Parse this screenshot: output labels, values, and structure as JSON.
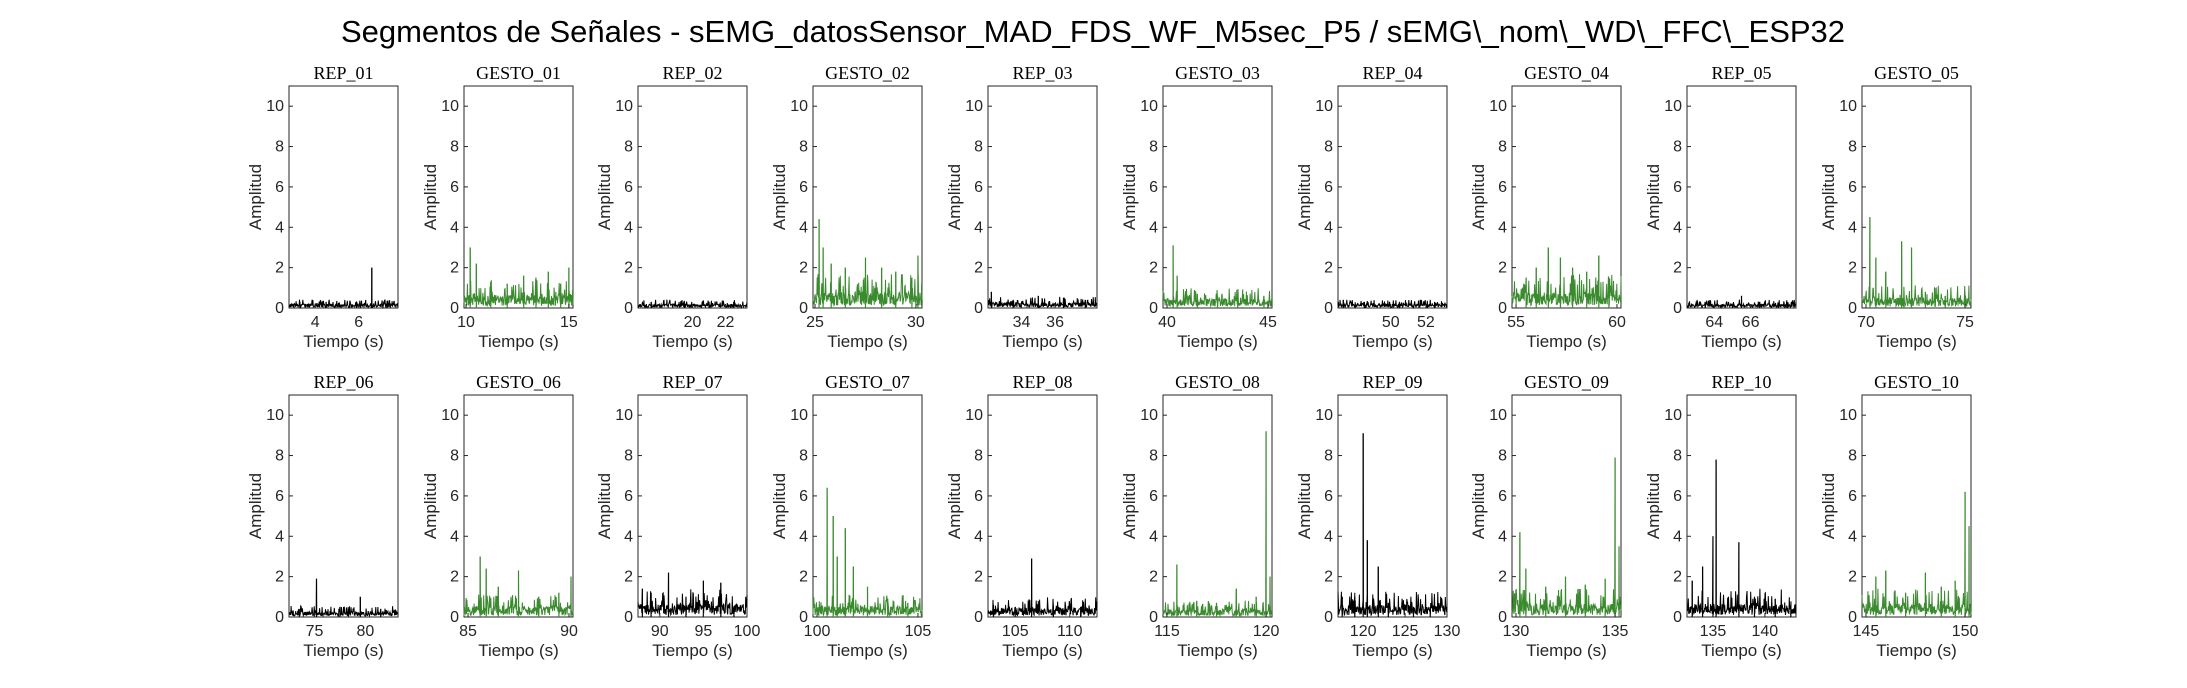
{
  "figure": {
    "title": "Segmentos de Señales - sEMG_datosSensor_MAD_FDS_WF_M5sec_P5 / sEMG\\_nom\\_WD\\_FFC\\_ESP32"
  },
  "colors": {
    "rep": "#000000",
    "gesto": "#3a8a2e"
  },
  "chart_data": [
    {
      "type": "line",
      "title": "REP_01",
      "xlabel": "Tiempo (s)",
      "ylabel": "Amplitud",
      "xlim": [
        2.8,
        7.8
      ],
      "ylim": [
        0,
        11
      ],
      "xticks": [
        4,
        6
      ],
      "yticks": [
        0,
        2,
        4,
        6,
        8,
        10
      ],
      "color_key": "rep",
      "baseline": 0.15,
      "spikes": [
        [
          3.3,
          0.3
        ],
        [
          4.5,
          0.3
        ],
        [
          5.9,
          0.3
        ],
        [
          6.6,
          2.0
        ],
        [
          7.3,
          0.35
        ]
      ]
    },
    {
      "type": "line",
      "title": "GESTO_01",
      "xlabel": "Tiempo (s)",
      "ylabel": "Amplitud",
      "xlim": [
        9.9,
        15.2
      ],
      "ylim": [
        0,
        11
      ],
      "xticks": [
        10,
        15
      ],
      "yticks": [
        0,
        2,
        4,
        6,
        8,
        10
      ],
      "color_key": "gesto",
      "baseline": 0.5,
      "spikes": [
        [
          10.2,
          3.0
        ],
        [
          10.5,
          2.2
        ],
        [
          11.2,
          1.3
        ],
        [
          12.0,
          1.2
        ],
        [
          12.8,
          1.6
        ],
        [
          13.4,
          1.5
        ],
        [
          14.0,
          1.8
        ],
        [
          14.6,
          1.2
        ],
        [
          15.0,
          2.0
        ]
      ]
    },
    {
      "type": "line",
      "title": "REP_02",
      "xlabel": "Tiempo (s)",
      "ylabel": "Amplitud",
      "xlim": [
        16.7,
        23.3
      ],
      "ylim": [
        0,
        11
      ],
      "xticks": [
        20,
        22
      ],
      "yticks": [
        0,
        2,
        4,
        6,
        8,
        10
      ],
      "color_key": "rep",
      "baseline": 0.15,
      "spikes": [
        [
          17.5,
          0.3
        ],
        [
          19.5,
          0.35
        ],
        [
          21.0,
          0.3
        ],
        [
          22.5,
          0.3
        ]
      ]
    },
    {
      "type": "line",
      "title": "GESTO_02",
      "xlabel": "Tiempo (s)",
      "ylabel": "Amplitud",
      "xlim": [
        24.9,
        30.3
      ],
      "ylim": [
        0,
        11
      ],
      "xticks": [
        25,
        30
      ],
      "yticks": [
        0,
        2,
        4,
        6,
        8,
        10
      ],
      "color_key": "gesto",
      "baseline": 0.6,
      "spikes": [
        [
          25.2,
          4.4
        ],
        [
          25.4,
          3.0
        ],
        [
          25.8,
          2.2
        ],
        [
          26.5,
          2.0
        ],
        [
          27.5,
          2.5
        ],
        [
          28.3,
          2.0
        ],
        [
          29.0,
          1.8
        ],
        [
          29.8,
          1.5
        ],
        [
          30.1,
          2.6
        ]
      ]
    },
    {
      "type": "line",
      "title": "REP_03",
      "xlabel": "Tiempo (s)",
      "ylabel": "Amplitud",
      "xlim": [
        32.0,
        38.5
      ],
      "ylim": [
        0,
        11
      ],
      "xticks": [
        34,
        36
      ],
      "yticks": [
        0,
        2,
        4,
        6,
        8,
        10
      ],
      "color_key": "rep",
      "baseline": 0.2,
      "spikes": [
        [
          32.2,
          0.8
        ],
        [
          33.5,
          0.4
        ],
        [
          35.0,
          0.6
        ],
        [
          36.5,
          0.5
        ],
        [
          37.8,
          0.4
        ]
      ]
    },
    {
      "type": "line",
      "title": "GESTO_03",
      "xlabel": "Tiempo (s)",
      "ylabel": "Amplitud",
      "xlim": [
        39.8,
        45.2
      ],
      "ylim": [
        0,
        11
      ],
      "xticks": [
        40,
        45
      ],
      "yticks": [
        0,
        2,
        4,
        6,
        8,
        10
      ],
      "color_key": "gesto",
      "baseline": 0.35,
      "spikes": [
        [
          40.3,
          3.1
        ],
        [
          40.5,
          1.6
        ],
        [
          41.5,
          0.7
        ],
        [
          42.5,
          0.6
        ],
        [
          43.5,
          0.6
        ],
        [
          44.8,
          0.6
        ]
      ]
    },
    {
      "type": "line",
      "title": "REP_04",
      "xlabel": "Tiempo (s)",
      "ylabel": "Amplitud",
      "xlim": [
        47.0,
        53.2
      ],
      "ylim": [
        0,
        11
      ],
      "xticks": [
        50,
        52
      ],
      "yticks": [
        0,
        2,
        4,
        6,
        8,
        10
      ],
      "color_key": "rep",
      "baseline": 0.15,
      "spikes": [
        [
          47.3,
          0.4
        ],
        [
          48.5,
          0.3
        ],
        [
          50.5,
          0.3
        ],
        [
          52.5,
          0.3
        ]
      ]
    },
    {
      "type": "line",
      "title": "GESTO_04",
      "xlabel": "Tiempo (s)",
      "ylabel": "Amplitud",
      "xlim": [
        54.8,
        60.2
      ],
      "ylim": [
        0,
        11
      ],
      "xticks": [
        55,
        60
      ],
      "yticks": [
        0,
        2,
        4,
        6,
        8,
        10
      ],
      "color_key": "gesto",
      "baseline": 0.6,
      "spikes": [
        [
          55.5,
          1.5
        ],
        [
          56.0,
          2.0
        ],
        [
          56.6,
          3.0
        ],
        [
          57.2,
          2.5
        ],
        [
          57.8,
          2.0
        ],
        [
          58.5,
          1.8
        ],
        [
          59.1,
          2.6
        ],
        [
          59.6,
          1.5
        ]
      ]
    },
    {
      "type": "line",
      "title": "REP_05",
      "xlabel": "Tiempo (s)",
      "ylabel": "Amplitud",
      "xlim": [
        62.5,
        68.5
      ],
      "ylim": [
        0,
        11
      ],
      "xticks": [
        64,
        66
      ],
      "yticks": [
        0,
        2,
        4,
        6,
        8,
        10
      ],
      "color_key": "rep",
      "baseline": 0.15,
      "spikes": [
        [
          63.5,
          0.3
        ],
        [
          65.5,
          0.6
        ],
        [
          66.5,
          0.3
        ],
        [
          68.0,
          0.3
        ]
      ]
    },
    {
      "type": "line",
      "title": "GESTO_05",
      "xlabel": "Tiempo (s)",
      "ylabel": "Amplitud",
      "xlim": [
        69.8,
        75.3
      ],
      "ylim": [
        0,
        11
      ],
      "xticks": [
        70,
        75
      ],
      "yticks": [
        0,
        2,
        4,
        6,
        8,
        10
      ],
      "color_key": "gesto",
      "baseline": 0.4,
      "spikes": [
        [
          70.2,
          4.5
        ],
        [
          70.5,
          2.5
        ],
        [
          71.0,
          1.8
        ],
        [
          71.8,
          3.3
        ],
        [
          72.3,
          3.0
        ],
        [
          73.0,
          0.8
        ],
        [
          74.0,
          0.6
        ],
        [
          75.0,
          0.6
        ]
      ]
    },
    {
      "type": "line",
      "title": "REP_06",
      "xlabel": "Tiempo (s)",
      "ylabel": "Amplitud",
      "xlim": [
        72.5,
        83.2
      ],
      "ylim": [
        0,
        11
      ],
      "xticks": [
        75,
        80
      ],
      "yticks": [
        0,
        2,
        4,
        6,
        8,
        10
      ],
      "color_key": "rep",
      "baseline": 0.2,
      "spikes": [
        [
          73.5,
          0.4
        ],
        [
          75.2,
          1.9
        ],
        [
          77.5,
          0.5
        ],
        [
          79.5,
          1.0
        ],
        [
          81.5,
          0.4
        ]
      ]
    },
    {
      "type": "line",
      "title": "GESTO_06",
      "xlabel": "Tiempo (s)",
      "ylabel": "Amplitud",
      "xlim": [
        84.8,
        90.2
      ],
      "ylim": [
        0,
        11
      ],
      "xticks": [
        85,
        90
      ],
      "yticks": [
        0,
        2,
        4,
        6,
        8,
        10
      ],
      "color_key": "gesto",
      "baseline": 0.4,
      "spikes": [
        [
          85.6,
          3.0
        ],
        [
          85.9,
          2.4
        ],
        [
          86.5,
          1.5
        ],
        [
          87.5,
          2.3
        ],
        [
          88.5,
          1.0
        ],
        [
          89.5,
          1.2
        ],
        [
          90.1,
          2.0
        ]
      ]
    },
    {
      "type": "line",
      "title": "REP_07",
      "xlabel": "Tiempo (s)",
      "ylabel": "Amplitud",
      "xlim": [
        87.5,
        100.0
      ],
      "ylim": [
        0,
        11
      ],
      "xticks": [
        90,
        95,
        100
      ],
      "yticks": [
        0,
        2,
        4,
        6,
        8,
        10
      ],
      "color_key": "rep",
      "baseline": 0.5,
      "spikes": [
        [
          88.0,
          1.4
        ],
        [
          89.0,
          1.2
        ],
        [
          91.0,
          2.2
        ],
        [
          93.0,
          1.0
        ],
        [
          95.0,
          1.8
        ],
        [
          97.0,
          1.7
        ],
        [
          98.5,
          0.5
        ]
      ]
    },
    {
      "type": "line",
      "title": "GESTO_07",
      "xlabel": "Tiempo (s)",
      "ylabel": "Amplitud",
      "xlim": [
        99.8,
        105.2
      ],
      "ylim": [
        0,
        11
      ],
      "xticks": [
        100,
        105
      ],
      "yticks": [
        0,
        2,
        4,
        6,
        8,
        10
      ],
      "color_key": "gesto",
      "baseline": 0.4,
      "spikes": [
        [
          100.5,
          6.4
        ],
        [
          100.8,
          5.0
        ],
        [
          101.0,
          3.0
        ],
        [
          101.4,
          4.4
        ],
        [
          101.8,
          2.5
        ],
        [
          102.5,
          1.5
        ],
        [
          103.5,
          0.9
        ],
        [
          104.5,
          0.7
        ]
      ]
    },
    {
      "type": "line",
      "title": "REP_08",
      "xlabel": "Tiempo (s)",
      "ylabel": "Amplitud",
      "xlim": [
        102.5,
        112.5
      ],
      "ylim": [
        0,
        11
      ],
      "xticks": [
        105,
        110
      ],
      "yticks": [
        0,
        2,
        4,
        6,
        8,
        10
      ],
      "color_key": "rep",
      "baseline": 0.35,
      "spikes": [
        [
          103.0,
          0.6
        ],
        [
          105.0,
          0.5
        ],
        [
          106.5,
          2.9
        ],
        [
          108.5,
          0.5
        ],
        [
          111.0,
          0.4
        ]
      ]
    },
    {
      "type": "line",
      "title": "GESTO_08",
      "xlabel": "Tiempo (s)",
      "ylabel": "Amplitud",
      "xlim": [
        114.8,
        120.3
      ],
      "ylim": [
        0,
        11
      ],
      "xticks": [
        115,
        120
      ],
      "yticks": [
        0,
        2,
        4,
        6,
        8,
        10
      ],
      "color_key": "gesto",
      "baseline": 0.3,
      "spikes": [
        [
          115.5,
          2.6
        ],
        [
          116.5,
          0.8
        ],
        [
          117.5,
          0.7
        ],
        [
          118.5,
          1.4
        ],
        [
          119.5,
          1.0
        ],
        [
          120.0,
          9.2
        ],
        [
          120.2,
          2.0
        ]
      ]
    },
    {
      "type": "line",
      "title": "REP_09",
      "xlabel": "Tiempo (s)",
      "ylabel": "Amplitud",
      "xlim": [
        117.0,
        130.0
      ],
      "ylim": [
        0,
        11
      ],
      "xticks": [
        120,
        125,
        130
      ],
      "yticks": [
        0,
        2,
        4,
        6,
        8,
        10
      ],
      "color_key": "rep",
      "baseline": 0.45,
      "spikes": [
        [
          117.5,
          1.0
        ],
        [
          119.0,
          1.0
        ],
        [
          120.0,
          9.1
        ],
        [
          120.5,
          3.8
        ],
        [
          121.8,
          2.5
        ],
        [
          123.0,
          0.7
        ],
        [
          126.0,
          0.5
        ],
        [
          128.0,
          0.5
        ]
      ]
    },
    {
      "type": "line",
      "title": "GESTO_09",
      "xlabel": "Tiempo (s)",
      "ylabel": "Amplitud",
      "xlim": [
        129.8,
        135.3
      ],
      "ylim": [
        0,
        11
      ],
      "xticks": [
        130,
        135
      ],
      "yticks": [
        0,
        2,
        4,
        6,
        8,
        10
      ],
      "color_key": "gesto",
      "baseline": 0.5,
      "spikes": [
        [
          130.2,
          4.2
        ],
        [
          130.5,
          2.4
        ],
        [
          131.5,
          1.5
        ],
        [
          132.5,
          2.0
        ],
        [
          133.5,
          1.6
        ],
        [
          134.5,
          1.9
        ],
        [
          135.0,
          7.9
        ],
        [
          135.2,
          3.5
        ]
      ]
    },
    {
      "type": "line",
      "title": "REP_10",
      "xlabel": "Tiempo (s)",
      "ylabel": "Amplitud",
      "xlim": [
        132.5,
        143.0
      ],
      "ylim": [
        0,
        11
      ],
      "xticks": [
        135,
        140
      ],
      "yticks": [
        0,
        2,
        4,
        6,
        8,
        10
      ],
      "color_key": "rep",
      "baseline": 0.5,
      "spikes": [
        [
          133.0,
          1.8
        ],
        [
          134.0,
          2.5
        ],
        [
          135.0,
          4.0
        ],
        [
          135.3,
          7.8
        ],
        [
          137.5,
          3.7
        ],
        [
          139.0,
          1.0
        ],
        [
          141.0,
          0.9
        ],
        [
          142.5,
          0.6
        ]
      ]
    },
    {
      "type": "line",
      "title": "GESTO_10",
      "xlabel": "Tiempo (s)",
      "ylabel": "Amplitud",
      "xlim": [
        144.8,
        150.3
      ],
      "ylim": [
        0,
        11
      ],
      "xticks": [
        145,
        150
      ],
      "yticks": [
        0,
        2,
        4,
        6,
        8,
        10
      ],
      "color_key": "gesto",
      "baseline": 0.5,
      "spikes": [
        [
          145.5,
          2.0
        ],
        [
          146.0,
          2.3
        ],
        [
          147.0,
          1.2
        ],
        [
          148.0,
          2.2
        ],
        [
          148.8,
          1.5
        ],
        [
          149.5,
          1.8
        ],
        [
          150.0,
          6.2
        ],
        [
          150.2,
          4.5
        ]
      ]
    }
  ]
}
